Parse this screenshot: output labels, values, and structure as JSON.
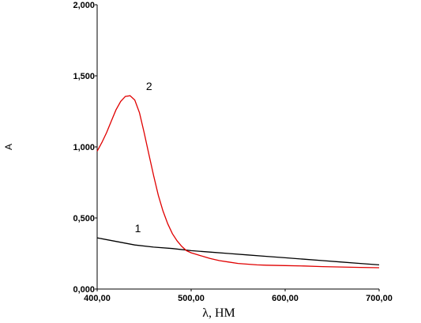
{
  "chart_data": {
    "type": "line",
    "title": "",
    "xlabel": "λ, НМ",
    "ylabel": "А",
    "xlim": [
      400,
      700
    ],
    "ylim": [
      0,
      2
    ],
    "x_ticks": [
      "400,00",
      "500,00",
      "600,00",
      "700,00"
    ],
    "y_ticks": [
      "0,000",
      "0,500",
      "1,000",
      "1,500",
      "2,000"
    ],
    "x_tick_values": [
      400,
      500,
      600,
      700
    ],
    "y_tick_values": [
      0,
      0.5,
      1,
      1.5,
      2
    ],
    "grid": false,
    "series": [
      {
        "name": "1",
        "color": "#000000",
        "x": [
          400,
          420,
          440,
          460,
          480,
          500,
          520,
          540,
          560,
          580,
          600,
          620,
          640,
          660,
          680,
          700
        ],
        "y": [
          0.36,
          0.335,
          0.31,
          0.295,
          0.285,
          0.27,
          0.26,
          0.25,
          0.24,
          0.23,
          0.22,
          0.21,
          0.2,
          0.19,
          0.18,
          0.17
        ]
      },
      {
        "name": "2",
        "color": "#e00000",
        "x": [
          400,
          405,
          410,
          415,
          420,
          425,
          430,
          435,
          440,
          445,
          450,
          455,
          460,
          465,
          470,
          475,
          480,
          485,
          490,
          495,
          500,
          505,
          510,
          515,
          520,
          530,
          540,
          550,
          560,
          570,
          580,
          600,
          620,
          640,
          660,
          680,
          700
        ],
        "y": [
          0.97,
          1.03,
          1.1,
          1.18,
          1.26,
          1.32,
          1.355,
          1.36,
          1.33,
          1.24,
          1.1,
          0.95,
          0.8,
          0.66,
          0.55,
          0.46,
          0.39,
          0.34,
          0.3,
          0.27,
          0.255,
          0.245,
          0.235,
          0.225,
          0.215,
          0.2,
          0.19,
          0.18,
          0.175,
          0.17,
          0.168,
          0.165,
          0.162,
          0.158,
          0.155,
          0.152,
          0.15
        ]
      }
    ],
    "curve_labels": [
      {
        "text": "1",
        "series": 0
      },
      {
        "text": "2",
        "series": 1
      }
    ]
  }
}
